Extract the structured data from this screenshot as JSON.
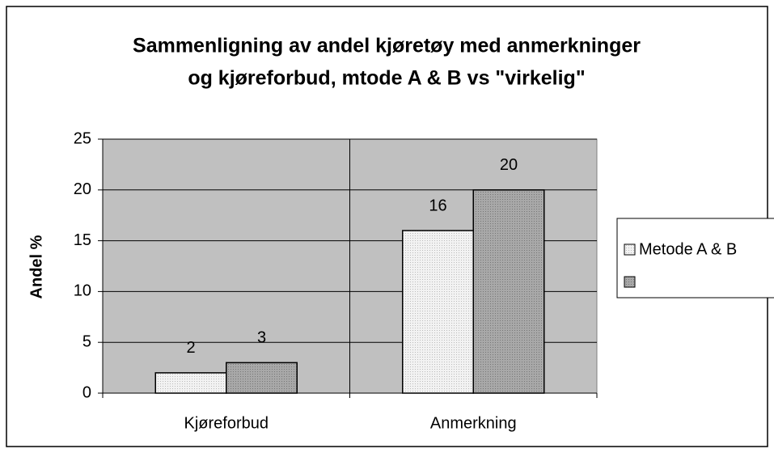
{
  "chart_data": {
    "type": "bar",
    "title": [
      "Sammenligning av andel kjøretøy med anmerkninger",
      "og kjøreforbud, mtode A & B vs \"virkelig\""
    ],
    "y_label": "Andel %",
    "categories": [
      "Kjøreforbud",
      "Anmerkning"
    ],
    "series": [
      {
        "name": "Metode A & B",
        "color": "#f2f2f2",
        "values": [
          2,
          16
        ]
      },
      {
        "color": "#a8a8a8",
        "values": [
          3,
          20
        ]
      }
    ],
    "ylim": [
      0,
      25
    ],
    "yticks": [
      0,
      5,
      10,
      15,
      20,
      25
    ],
    "grid": true,
    "plot_background": "#c0c0c0",
    "legend": "right"
  }
}
